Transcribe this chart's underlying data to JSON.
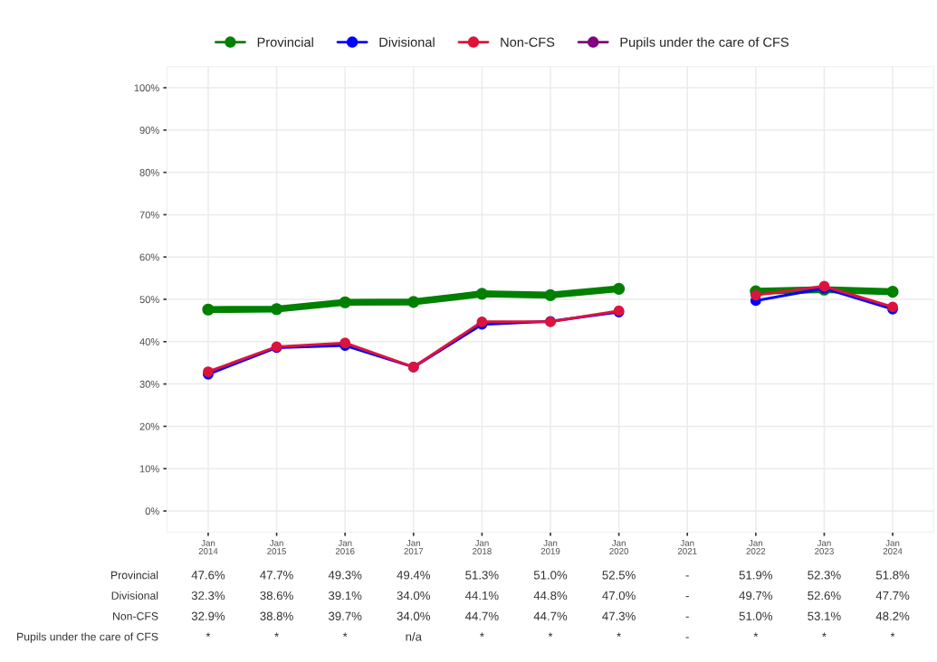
{
  "chart_data": {
    "type": "line",
    "categories": [
      "Jan\n2014",
      "Jan\n2015",
      "Jan\n2016",
      "Jan\n2017",
      "Jan\n2018",
      "Jan\n2019",
      "Jan\n2020",
      "Jan\n2021",
      "Jan\n2022",
      "Jan\n2023",
      "Jan\n2024"
    ],
    "series": [
      {
        "name": "Provincial",
        "color": "#008000",
        "values": [
          47.6,
          47.7,
          49.3,
          49.4,
          51.3,
          51.0,
          52.5,
          null,
          51.9,
          52.3,
          51.8
        ],
        "value_labels": [
          "47.6%",
          "47.7%",
          "49.3%",
          "49.4%",
          "51.3%",
          "51.0%",
          "52.5%",
          "-",
          "51.9%",
          "52.3%",
          "51.8%"
        ]
      },
      {
        "name": "Divisional",
        "color": "#0000ff",
        "values": [
          32.3,
          38.6,
          39.1,
          34.0,
          44.1,
          44.8,
          47.0,
          null,
          49.7,
          52.6,
          47.7
        ],
        "value_labels": [
          "32.3%",
          "38.6%",
          "39.1%",
          "34.0%",
          "44.1%",
          "44.8%",
          "47.0%",
          "-",
          "49.7%",
          "52.6%",
          "47.7%"
        ]
      },
      {
        "name": "Non-CFS",
        "color": "#dc143c",
        "values": [
          32.9,
          38.8,
          39.7,
          34.0,
          44.7,
          44.7,
          47.3,
          null,
          51.0,
          53.1,
          48.2
        ],
        "value_labels": [
          "32.9%",
          "38.8%",
          "39.7%",
          "34.0%",
          "44.7%",
          "44.7%",
          "47.3%",
          "-",
          "51.0%",
          "53.1%",
          "48.2%"
        ]
      },
      {
        "name": "Pupils under the care of CFS",
        "color": "#800080",
        "values": [
          null,
          null,
          null,
          null,
          null,
          null,
          null,
          null,
          null,
          null,
          null
        ],
        "value_labels": [
          "*",
          "*",
          "*",
          "n/a",
          "*",
          "*",
          "*",
          "-",
          "*",
          "*",
          "*"
        ]
      }
    ],
    "ylim": [
      -5,
      105
    ],
    "yticks": [
      {
        "value": 0,
        "label": "0%"
      },
      {
        "value": 10,
        "label": "10%"
      },
      {
        "value": 20,
        "label": "20%"
      },
      {
        "value": 30,
        "label": "30%"
      },
      {
        "value": 40,
        "label": "40%"
      },
      {
        "value": 50,
        "label": "50%"
      },
      {
        "value": 60,
        "label": "60%"
      },
      {
        "value": 70,
        "label": "70%"
      },
      {
        "value": 80,
        "label": "80%"
      },
      {
        "value": 90,
        "label": "90%"
      },
      {
        "value": 100,
        "label": "100%"
      }
    ],
    "grid": true,
    "legend": "top",
    "marker": "circle",
    "line_style": "solid"
  }
}
